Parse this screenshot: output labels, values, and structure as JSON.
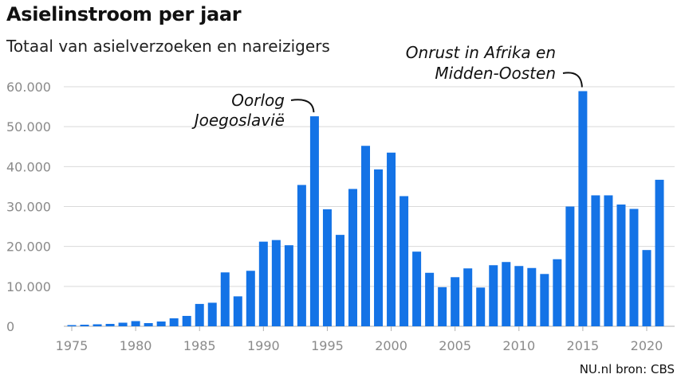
{
  "title": "Asielinstroom per jaar",
  "subtitle": "Totaal van asielverzoeken en nareizigers",
  "source": "NU.nl bron: CBS",
  "chart_data": {
    "type": "bar",
    "title": "Asielinstroom per jaar",
    "subtitle": "Totaal van asielverzoeken en nareizigers",
    "xlabel": "",
    "ylabel": "",
    "ylim": [
      0,
      60000
    ],
    "grid": true,
    "bar_color": "#1473e6",
    "categories": [
      1975,
      1976,
      1977,
      1978,
      1979,
      1980,
      1981,
      1982,
      1983,
      1984,
      1985,
      1986,
      1987,
      1988,
      1989,
      1990,
      1991,
      1992,
      1993,
      1994,
      1995,
      1996,
      1997,
      1998,
      1999,
      2000,
      2001,
      2002,
      2003,
      2004,
      2005,
      2006,
      2007,
      2008,
      2009,
      2010,
      2011,
      2012,
      2013,
      2014,
      2015,
      2016,
      2017,
      2018,
      2019,
      2020,
      2021
    ],
    "values": [
      300,
      400,
      500,
      600,
      900,
      1300,
      800,
      1200,
      2000,
      2600,
      5600,
      5900,
      13500,
      7500,
      13900,
      21200,
      21600,
      20300,
      35400,
      52600,
      29300,
      22900,
      34400,
      45200,
      39300,
      43500,
      32600,
      18700,
      13400,
      9800,
      12300,
      14500,
      9700,
      15300,
      16100,
      15100,
      14600,
      13100,
      16800,
      30000,
      58900,
      32800,
      32800,
      30500,
      29400,
      19100,
      36700
    ],
    "y_ticks": [
      "60.000",
      "50.000",
      "40.000",
      "30.000",
      "20.000",
      "10.000",
      "0"
    ],
    "y_tick_values": [
      60000,
      50000,
      40000,
      30000,
      20000,
      10000,
      0
    ],
    "x_ticks": [
      "1975",
      "1980",
      "1985",
      "1990",
      "1995",
      "2000",
      "2005",
      "2010",
      "2015",
      "2020"
    ],
    "x_tick_values": [
      1975,
      1980,
      1985,
      1990,
      1995,
      2000,
      2005,
      2010,
      2015,
      2020
    ],
    "annotations": [
      {
        "lines": [
          "Oorlog",
          "Joegoslavië"
        ],
        "year": 1994
      },
      {
        "lines": [
          "Onrust in Afrika en",
          "Midden-Oosten"
        ],
        "year": 2015
      }
    ]
  }
}
